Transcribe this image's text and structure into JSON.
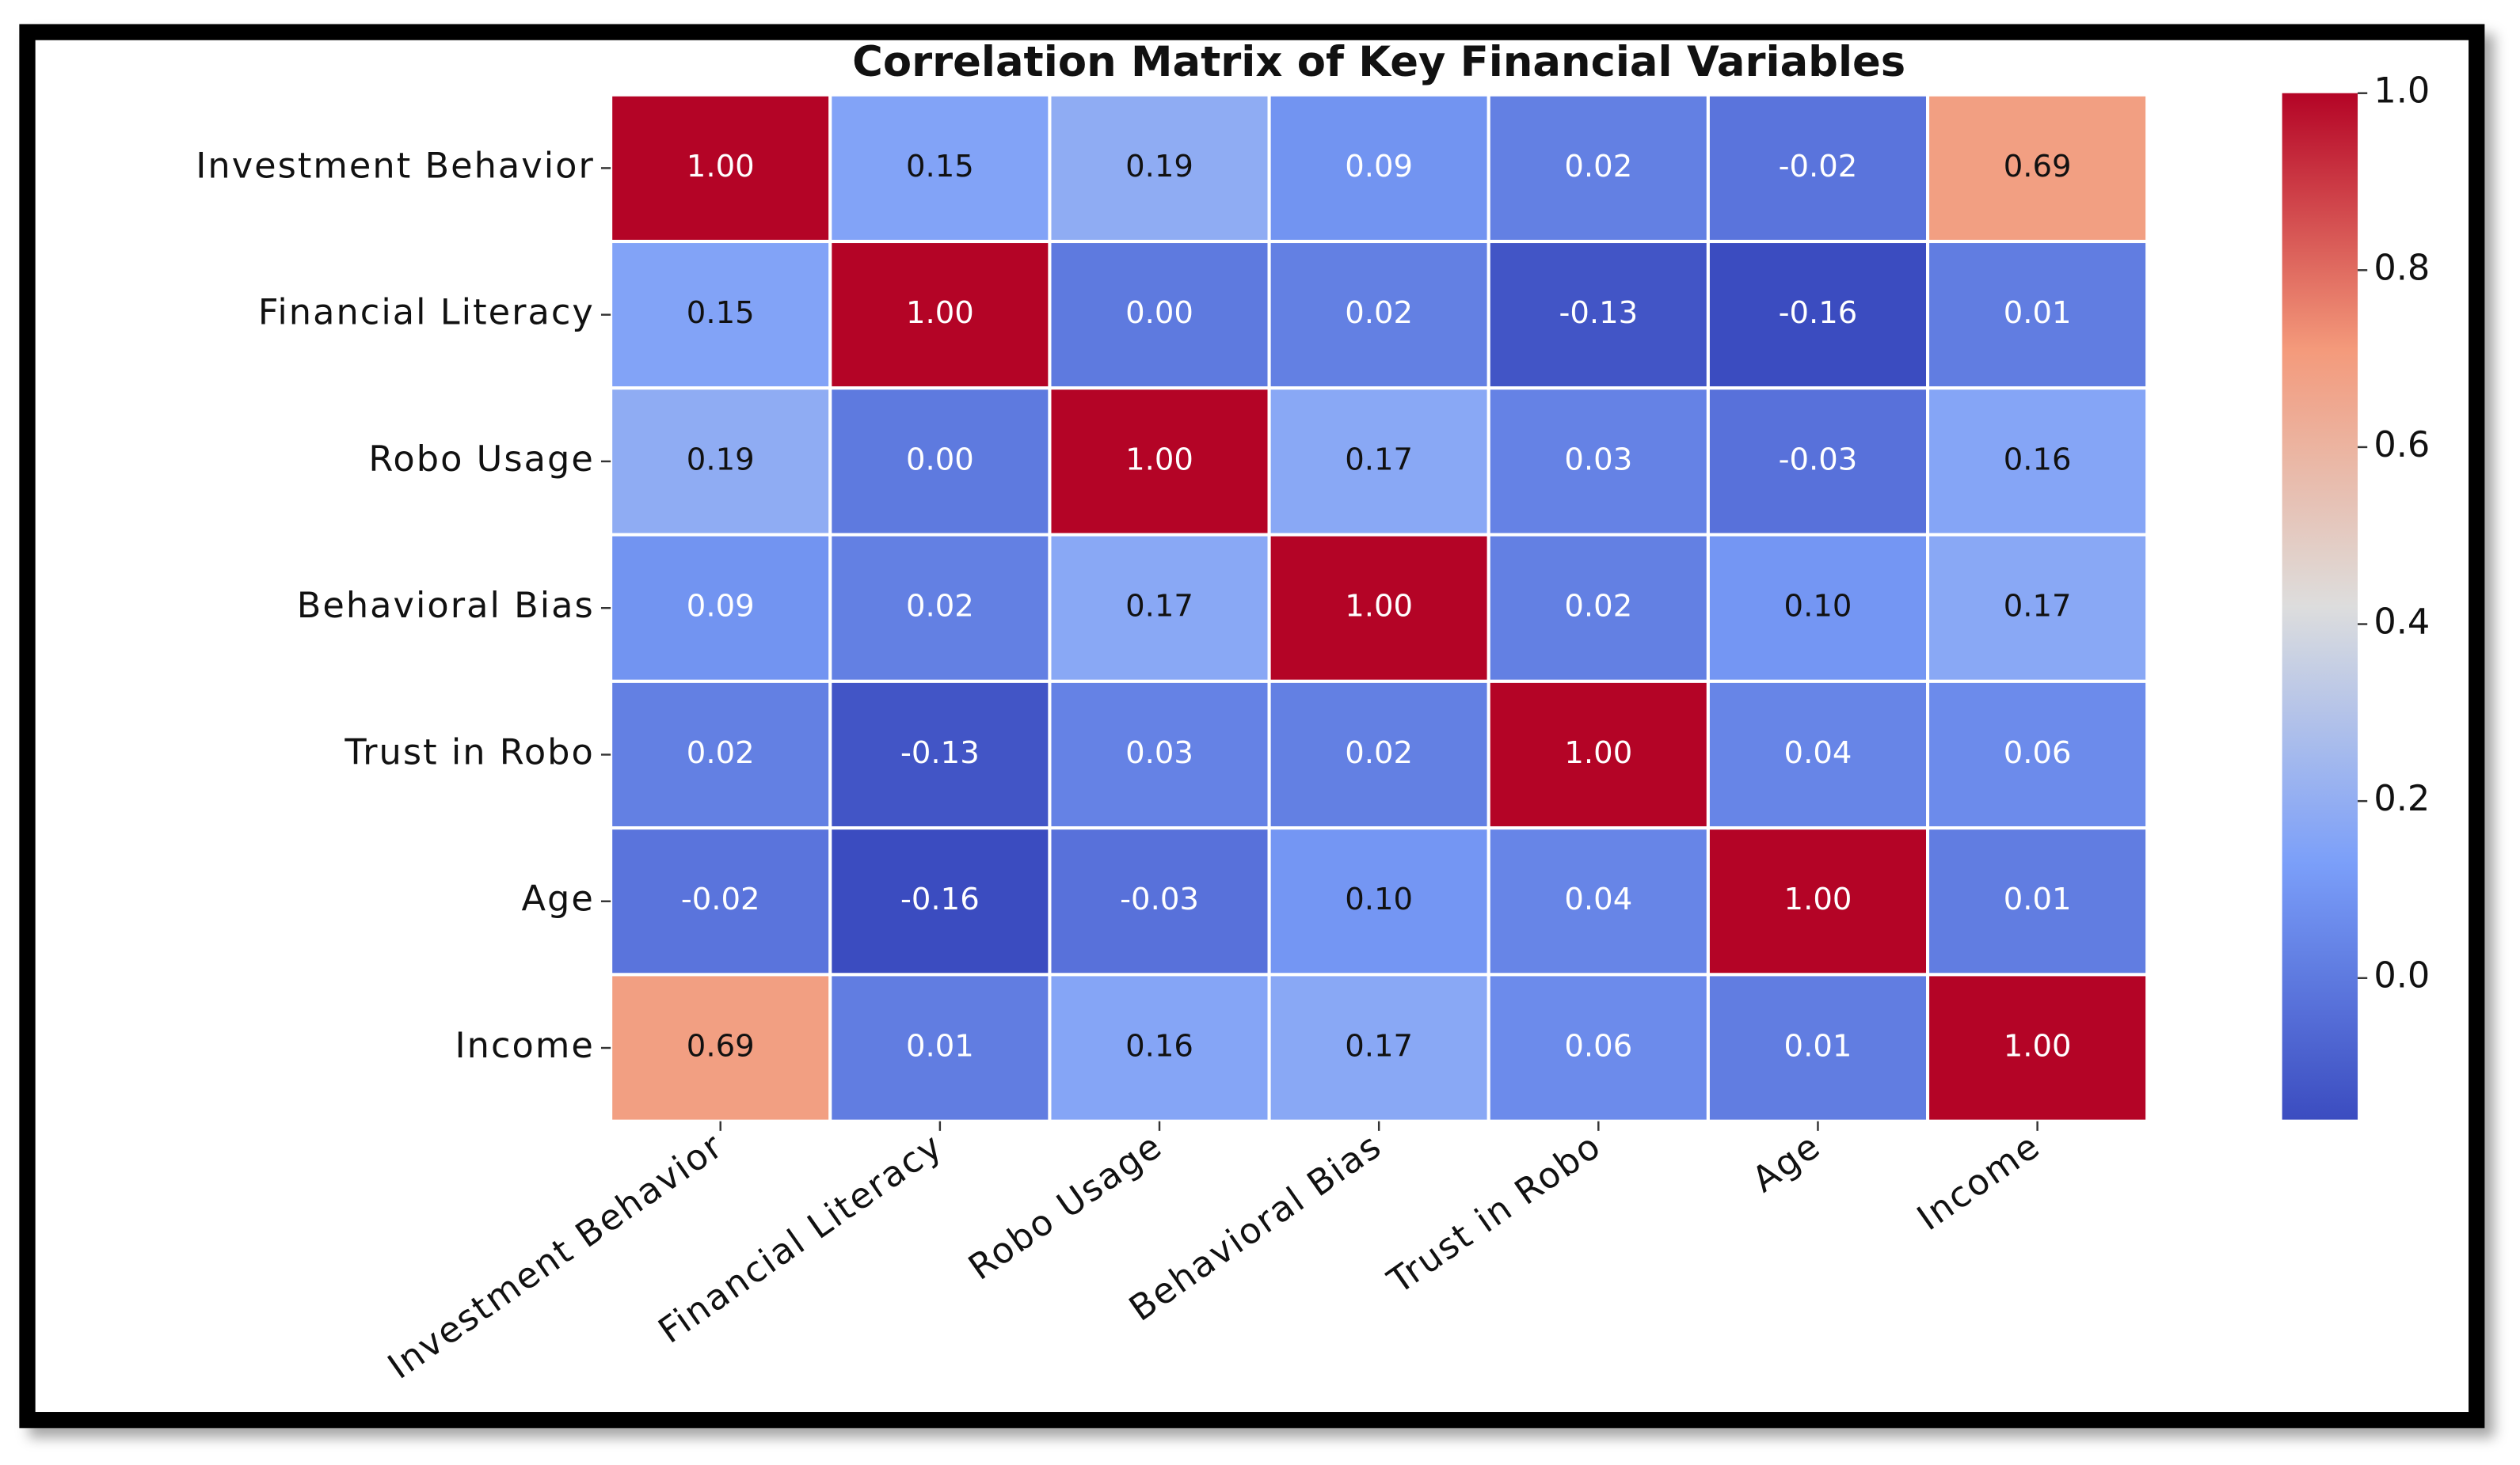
{
  "chart_data": {
    "type": "heatmap",
    "title": "Correlation Matrix of Key Financial Variables",
    "categories": [
      "Investment Behavior",
      "Financial Literacy",
      "Robo Usage",
      "Behavioral Bias",
      "Trust in Robo",
      "Age",
      "Income"
    ],
    "values": [
      [
        1.0,
        0.15,
        0.19,
        0.09,
        0.02,
        -0.02,
        0.69
      ],
      [
        0.15,
        1.0,
        0.0,
        0.02,
        -0.13,
        -0.16,
        0.01
      ],
      [
        0.19,
        0.0,
        1.0,
        0.17,
        0.03,
        -0.03,
        0.16
      ],
      [
        0.09,
        0.02,
        0.17,
        1.0,
        0.02,
        0.1,
        0.17
      ],
      [
        0.02,
        -0.13,
        0.03,
        0.02,
        1.0,
        0.04,
        0.06
      ],
      [
        -0.02,
        -0.16,
        -0.03,
        0.1,
        0.04,
        1.0,
        0.01
      ],
      [
        0.69,
        0.01,
        0.16,
        0.17,
        0.06,
        0.01,
        1.0
      ]
    ],
    "value_labels": [
      [
        "1.00",
        "0.15",
        "0.19",
        "0.09",
        "0.02",
        "-0.02",
        "0.69"
      ],
      [
        "0.15",
        "1.00",
        "0.00",
        "0.02",
        "-0.13",
        "-0.16",
        "0.01"
      ],
      [
        "0.19",
        "0.00",
        "1.00",
        "0.17",
        "0.03",
        "-0.03",
        "0.16"
      ],
      [
        "0.09",
        "0.02",
        "0.17",
        "1.00",
        "0.02",
        "0.10",
        "0.17"
      ],
      [
        "0.02",
        "-0.13",
        "0.03",
        "0.02",
        "1.00",
        "0.04",
        "0.06"
      ],
      [
        "-0.02",
        "-0.16",
        "-0.03",
        "0.10",
        "0.04",
        "1.00",
        "0.01"
      ],
      [
        "0.69",
        "0.01",
        "0.16",
        "0.17",
        "0.06",
        "0.01",
        "1.00"
      ]
    ],
    "colormap": "coolwarm",
    "clim": [
      -0.16,
      1.0
    ],
    "cticks": [
      {
        "value": 0,
        "label": "0.0"
      },
      0.2,
      0.4,
      0.6,
      0.8,
      {
        "value": 1,
        "label": "1.0"
      }
    ]
  }
}
